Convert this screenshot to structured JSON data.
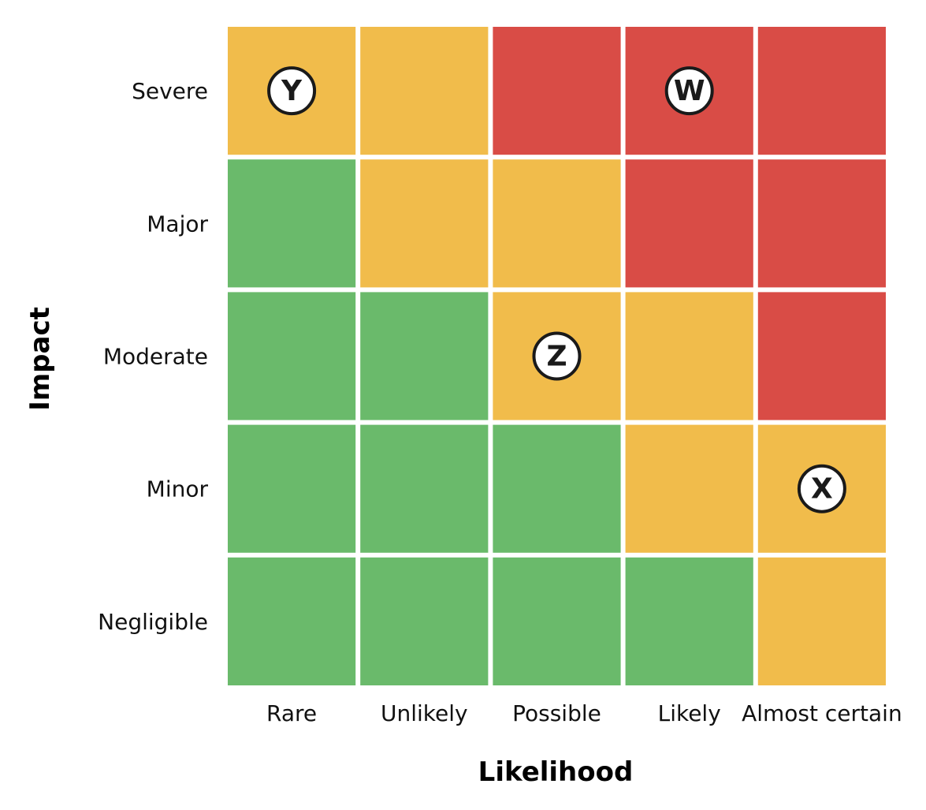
{
  "chart_data": {
    "type": "heatmap",
    "title": "",
    "xlabel": "Likelihood",
    "ylabel": "Impact",
    "x_categories": [
      "Rare",
      "Unlikely",
      "Possible",
      "Likely",
      "Almost certain"
    ],
    "y_categories": [
      "Severe",
      "Major",
      "Moderate",
      "Minor",
      "Negligible"
    ],
    "levels": {
      "low": "#6aba6b",
      "medium": "#f1bc4b",
      "high": "#d94c46"
    },
    "grid": [
      [
        "medium",
        "medium",
        "high",
        "high",
        "high"
      ],
      [
        "low",
        "medium",
        "medium",
        "high",
        "high"
      ],
      [
        "low",
        "low",
        "medium",
        "medium",
        "high"
      ],
      [
        "low",
        "low",
        "low",
        "medium",
        "medium"
      ],
      [
        "low",
        "low",
        "low",
        "low",
        "medium"
      ]
    ],
    "markers": [
      {
        "label": "Y",
        "likelihood": "Rare",
        "impact": "Severe"
      },
      {
        "label": "W",
        "likelihood": "Likely",
        "impact": "Severe"
      },
      {
        "label": "Z",
        "likelihood": "Possible",
        "impact": "Moderate"
      },
      {
        "label": "X",
        "likelihood": "Almost certain",
        "impact": "Minor"
      }
    ],
    "legend": "none",
    "grid_lines": false
  }
}
